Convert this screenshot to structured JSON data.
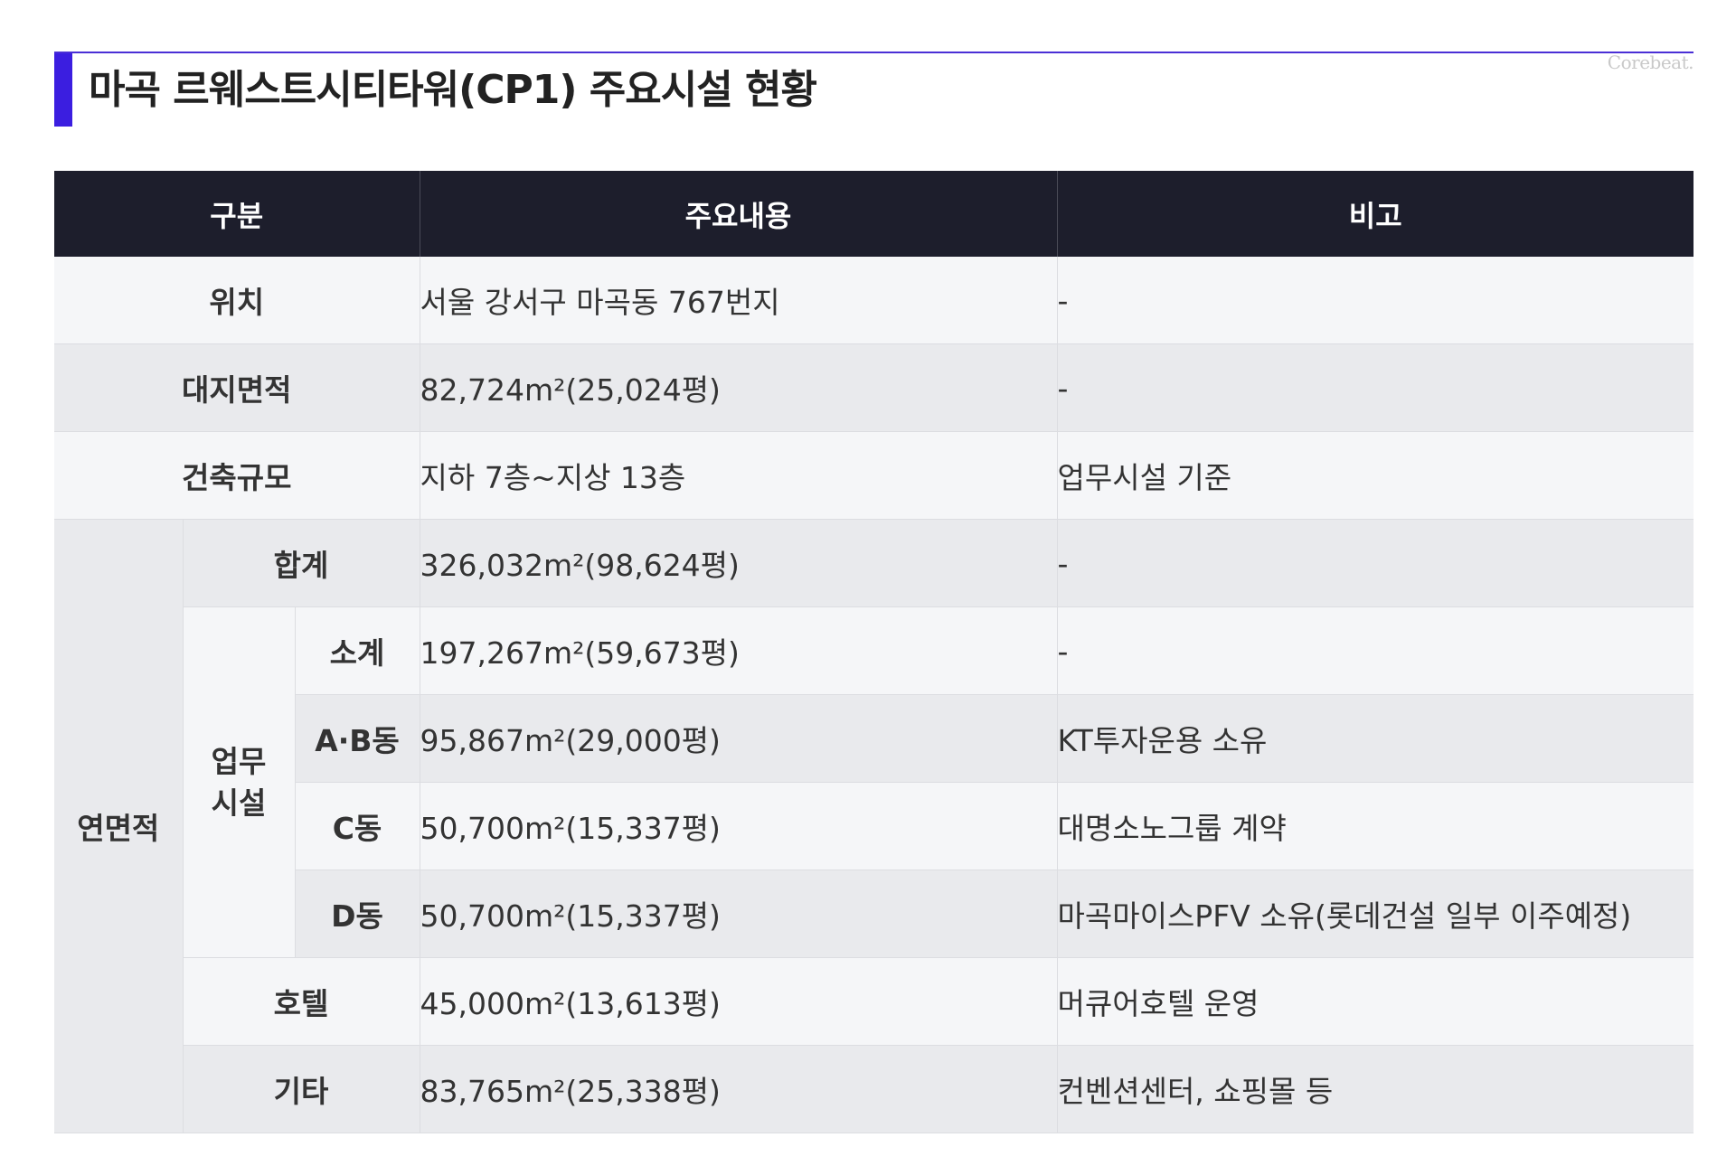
{
  "page": {
    "title": "마곡 르웨스트시티타워(CP1) 주요시설 현황",
    "brand": "Corebeat."
  },
  "table": {
    "headers": [
      "구분",
      "주요내용",
      "비고"
    ],
    "location": {
      "label": "위치",
      "content": "서울 강서구 마곡동 767번지",
      "note": "-"
    },
    "site_area": {
      "label": "대지면적",
      "content": "82,724m²(25,024평)",
      "note": "-"
    },
    "building_scale": {
      "label": "건축규모",
      "content": "지하 7층~지상 13층",
      "note": "업무시설 기준"
    },
    "floor_area": {
      "label": "연면적",
      "total": {
        "label": "합계",
        "content": "326,032m²(98,624평)",
        "note": "-"
      },
      "office": {
        "label_line1": "업무",
        "label_line2": "시설",
        "subtotal": {
          "label": "소계",
          "content": "197,267m²(59,673평)",
          "note": "-"
        },
        "ab": {
          "label": "A·B동",
          "content": "95,867m²(29,000평)",
          "note": "KT투자운용 소유"
        },
        "c": {
          "label": "C동",
          "content": "50,700m²(15,337평)",
          "note": "대명소노그룹 계약"
        },
        "d": {
          "label": "D동",
          "content": "50,700m²(15,337평)",
          "note": "마곡마이스PFV 소유(롯데건설 일부 이주예정)"
        }
      },
      "hotel": {
        "label": "호텔",
        "content": "45,000m²(13,613평)",
        "note": "머큐어호텔 운영"
      },
      "other": {
        "label": "기타",
        "content": "83,765m²(25,338평)",
        "note": "컨벤션센터, 쇼핑몰 등"
      }
    }
  },
  "colors": {
    "accent": "#3b1ee0",
    "header_bg": "#1d1e2c",
    "row_light": "#f5f6f8",
    "row_dark": "#e9eaed"
  }
}
